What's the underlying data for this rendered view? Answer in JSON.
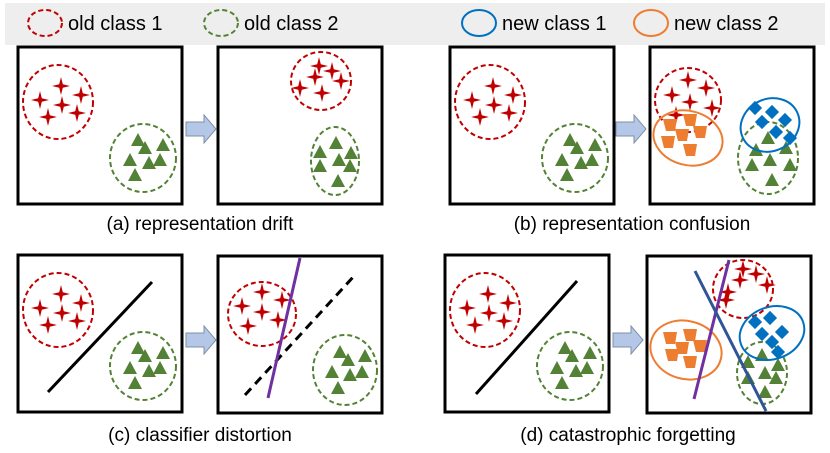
{
  "legend": {
    "items": [
      {
        "label": "old class 1",
        "color": "#c00000",
        "style": "dashed"
      },
      {
        "label": "old class 2",
        "color": "#548235",
        "style": "dashed"
      },
      {
        "label": "new class 1",
        "color": "#0070c0",
        "style": "solid"
      },
      {
        "label": "new class 2",
        "color": "#ed7d31",
        "style": "solid"
      }
    ]
  },
  "panels": [
    {
      "caption": "(a) representation drift"
    },
    {
      "caption": "(b) representation confusion"
    },
    {
      "caption": "(c) classifier distortion"
    },
    {
      "caption": "(d) catastrophic forgetting"
    }
  ],
  "colors": {
    "old_boundary": "#000000",
    "new_boundary_1": "#7030a0",
    "new_boundary_2": "#2f5597",
    "arrow": "#b4c7e7"
  }
}
